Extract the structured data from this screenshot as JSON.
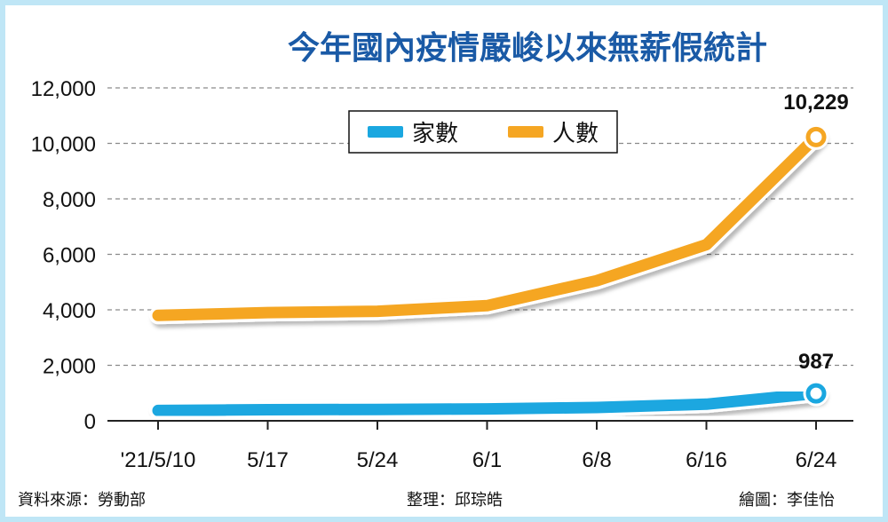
{
  "chart_data": {
    "type": "line",
    "title": "今年國內疫情嚴峻以來無薪假統計",
    "categories": [
      "'21/5/10",
      "5/17",
      "5/24",
      "6/1",
      "6/8",
      "6/16",
      "6/24"
    ],
    "series": [
      {
        "name": "家數",
        "values": [
          370,
          400,
          410,
          430,
          480,
          600,
          987
        ],
        "color": "#1aa7e0"
      },
      {
        "name": "人數",
        "values": [
          3800,
          3900,
          3950,
          4150,
          5050,
          6350,
          10229
        ],
        "color": "#f5a623"
      }
    ],
    "data_labels": [
      "10,229",
      "987"
    ],
    "y_ticks": [
      "0",
      "2,000",
      "4,000",
      "6,000",
      "8,000",
      "10,000",
      "12,000"
    ],
    "ylim": [
      0,
      12000
    ],
    "grid": true,
    "legend_position": "top-center"
  },
  "footer": {
    "source": "資料來源：勞動部",
    "editor": "整理：邱琮皓",
    "illustrator": "繪圖：李佳怡"
  },
  "colors": {
    "frame": "#bfe6f6",
    "title": "#1a5aa6",
    "households": "#1aa7e0",
    "workers": "#f5a623"
  }
}
